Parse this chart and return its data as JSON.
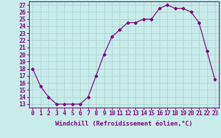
{
  "x": [
    0,
    1,
    2,
    3,
    4,
    5,
    6,
    7,
    8,
    9,
    10,
    11,
    12,
    13,
    14,
    15,
    16,
    17,
    18,
    19,
    20,
    21,
    22,
    23
  ],
  "y": [
    18,
    15.5,
    14,
    13,
    13,
    13,
    13,
    14,
    17,
    20,
    22.5,
    23.5,
    24.5,
    24.5,
    25,
    25,
    26.5,
    27,
    26.5,
    26.5,
    26,
    24.5,
    20.5,
    16.5
  ],
  "line_color": "#800080",
  "marker": "D",
  "marker_size": 2.0,
  "bg_color": "#c8ecea",
  "grid_color": "#aad4d2",
  "xlabel": "Windchill (Refroidissement éolien,°C)",
  "xlabel_fontsize": 6.5,
  "ylabel_ticks": [
    13,
    14,
    15,
    16,
    17,
    18,
    19,
    20,
    21,
    22,
    23,
    24,
    25,
    26,
    27
  ],
  "xlim": [
    -0.5,
    23.5
  ],
  "ylim": [
    12.5,
    27.5
  ],
  "tick_fontsize": 6.0,
  "spine_color": "#800080",
  "linewidth": 0.9
}
